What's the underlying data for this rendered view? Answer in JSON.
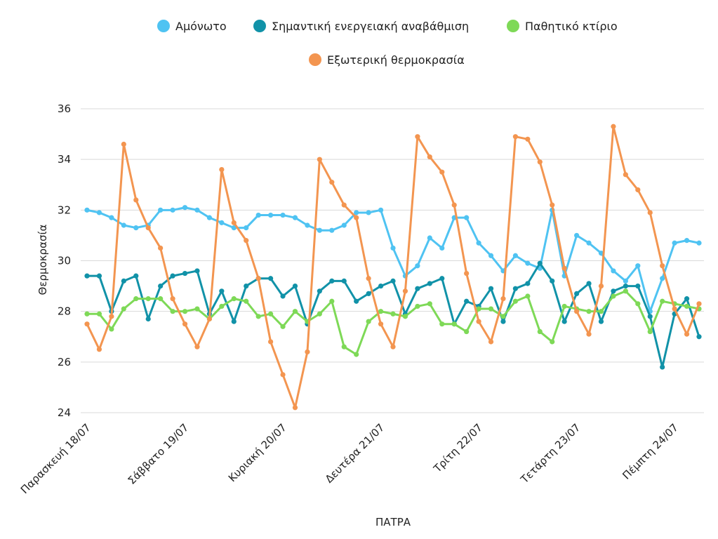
{
  "chart_data": {
    "type": "line",
    "title": "",
    "xlabel": "ΠΑΤΡΑ",
    "ylabel": "Θερμοκρασία",
    "ylim": [
      24,
      36
    ],
    "yticks": [
      24,
      26,
      28,
      30,
      32,
      34,
      36
    ],
    "grid": true,
    "legend_position": "top",
    "point_count": 51,
    "xtick_labels": [
      {
        "index": 0,
        "label": "Παρασκευή 18/07"
      },
      {
        "index": 8,
        "label": "Σάββατο 19/07"
      },
      {
        "index": 16,
        "label": "Κυριακή 20/07"
      },
      {
        "index": 24,
        "label": "Δευτέρα 21/07"
      },
      {
        "index": 32,
        "label": "Τρίτη 22/07"
      },
      {
        "index": 40,
        "label": "Τετάρτη 23/07"
      },
      {
        "index": 48,
        "label": "Πέμπτη 24/07"
      }
    ],
    "series": [
      {
        "name": "Αμόνωτο",
        "color": "#4fc3f2",
        "values": [
          32.0,
          31.9,
          31.7,
          31.4,
          31.3,
          31.4,
          32.0,
          32.0,
          32.1,
          32.0,
          31.7,
          31.5,
          31.3,
          31.3,
          31.8,
          31.8,
          31.8,
          31.7,
          31.4,
          31.2,
          31.2,
          31.4,
          31.9,
          31.9,
          32.0,
          30.5,
          29.4,
          29.8,
          30.9,
          30.5,
          31.7,
          31.7,
          30.7,
          30.2,
          29.6,
          30.2,
          29.9,
          29.7,
          32.0,
          29.4,
          31.0,
          30.7,
          30.3,
          29.6,
          29.2,
          29.8,
          28.0,
          29.3,
          30.7,
          30.8,
          30.7
        ]
      },
      {
        "name": "Σημαντική ενεργειακή αναβάθμιση",
        "color": "#1192a8",
        "values": [
          29.4,
          29.4,
          28.0,
          29.2,
          29.4,
          27.7,
          29.0,
          29.4,
          29.5,
          29.6,
          27.9,
          28.8,
          27.6,
          29.0,
          29.3,
          29.3,
          28.6,
          29.0,
          27.5,
          28.8,
          29.2,
          29.2,
          28.4,
          28.7,
          29.0,
          29.2,
          27.9,
          28.9,
          29.1,
          29.3,
          27.5,
          28.4,
          28.2,
          28.9,
          27.6,
          28.9,
          29.1,
          29.9,
          29.2,
          27.6,
          28.7,
          29.1,
          27.6,
          28.8,
          29.0,
          29.0,
          27.8,
          25.8,
          27.9,
          28.5,
          27.0
        ]
      },
      {
        "name": "Παθητικό κτίριο",
        "color": "#7ed957",
        "values": [
          27.9,
          27.9,
          27.3,
          28.1,
          28.5,
          28.5,
          28.5,
          28.0,
          28.0,
          28.1,
          27.7,
          28.2,
          28.5,
          28.4,
          27.8,
          27.9,
          27.4,
          28.0,
          27.6,
          27.9,
          28.4,
          26.6,
          26.3,
          27.6,
          28.0,
          27.9,
          27.8,
          28.2,
          28.3,
          27.5,
          27.5,
          27.2,
          28.1,
          28.1,
          27.8,
          28.4,
          28.6,
          27.2,
          26.8,
          28.2,
          28.1,
          28.0,
          28.0,
          28.6,
          28.8,
          28.3,
          27.2,
          28.4,
          28.3,
          28.2,
          28.1
        ]
      },
      {
        "name": "Εξωτερική θερμοκρασία",
        "color": "#f39550",
        "values": [
          27.5,
          26.5,
          27.8,
          34.6,
          32.4,
          31.3,
          30.5,
          28.5,
          27.5,
          26.6,
          27.7,
          33.6,
          31.5,
          30.8,
          29.3,
          26.8,
          25.5,
          24.2,
          26.4,
          34.0,
          33.1,
          32.2,
          31.7,
          29.3,
          27.5,
          26.6,
          28.8,
          34.9,
          34.1,
          33.5,
          32.2,
          29.5,
          27.6,
          26.8,
          28.5,
          34.9,
          34.8,
          33.9,
          32.2,
          29.7,
          28.0,
          27.1,
          29.0,
          35.3,
          33.4,
          32.8,
          31.9,
          29.8,
          28.1,
          27.1,
          28.3
        ]
      }
    ]
  }
}
